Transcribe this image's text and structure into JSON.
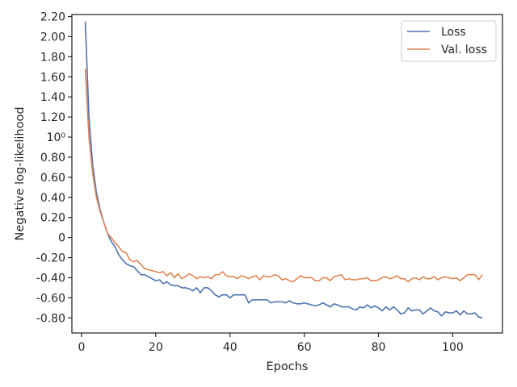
{
  "chart_data": {
    "type": "line",
    "title": "",
    "xlabel": "Epochs",
    "ylabel": "Negative log-likelihood",
    "xlim": [
      -2.6,
      113.4
    ],
    "ylim": [
      -0.95,
      2.22
    ],
    "x_ticks": [
      0,
      20,
      40,
      60,
      80,
      100
    ],
    "y_ticks": [
      {
        "value": 2.2,
        "label": "2.20"
      },
      {
        "value": 2.0,
        "label": "2.00"
      },
      {
        "value": 1.8,
        "label": "1.80"
      },
      {
        "value": 1.6,
        "label": "1.60"
      },
      {
        "value": 1.4,
        "label": "1.40"
      },
      {
        "value": 1.2,
        "label": "1.20"
      },
      {
        "value": 1.0,
        "label": "10⁰"
      },
      {
        "value": 0.8,
        "label": "0.80"
      },
      {
        "value": 0.6,
        "label": "0.60"
      },
      {
        "value": 0.4,
        "label": "0.40"
      },
      {
        "value": 0.2,
        "label": "0.20"
      },
      {
        "value": 0.0,
        "label": "0"
      },
      {
        "value": -0.2,
        "label": "-0.20"
      },
      {
        "value": -0.4,
        "label": "-0.40"
      },
      {
        "value": -0.6,
        "label": "-0.60"
      },
      {
        "value": -0.8,
        "label": "-0.80"
      }
    ],
    "grid": false,
    "legend_position": "top-right",
    "series": [
      {
        "name": "Loss",
        "color": "#4c72b0",
        "x": [
          1,
          2,
          3,
          4,
          5,
          6,
          7,
          8,
          9,
          10,
          11,
          12,
          13,
          14,
          15,
          16,
          17,
          18,
          19,
          20,
          21,
          22,
          23,
          24,
          25,
          26,
          27,
          28,
          29,
          30,
          31,
          32,
          33,
          34,
          35,
          36,
          37,
          38,
          39,
          40,
          41,
          42,
          43,
          44,
          45,
          46,
          47,
          48,
          49,
          50,
          51,
          52,
          53,
          54,
          55,
          56,
          57,
          58,
          59,
          60,
          61,
          62,
          63,
          64,
          65,
          66,
          67,
          68,
          69,
          70,
          71,
          72,
          73,
          74,
          75,
          76,
          77,
          78,
          79,
          80,
          81,
          82,
          83,
          84,
          85,
          86,
          87,
          88,
          89,
          90,
          91,
          92,
          93,
          94,
          95,
          96,
          97,
          98,
          99,
          100,
          101,
          102,
          103,
          104,
          105,
          106,
          107,
          108
        ],
        "y": [
          2.15,
          1.2,
          0.72,
          0.45,
          0.28,
          0.15,
          0.04,
          -0.04,
          -0.09,
          -0.17,
          -0.22,
          -0.26,
          -0.28,
          -0.29,
          -0.33,
          -0.37,
          -0.37,
          -0.39,
          -0.41,
          -0.43,
          -0.42,
          -0.46,
          -0.44,
          -0.47,
          -0.48,
          -0.48,
          -0.5,
          -0.5,
          -0.51,
          -0.53,
          -0.5,
          -0.55,
          -0.5,
          -0.5,
          -0.53,
          -0.57,
          -0.59,
          -0.57,
          -0.57,
          -0.6,
          -0.57,
          -0.57,
          -0.57,
          -0.57,
          -0.65,
          -0.62,
          -0.62,
          -0.62,
          -0.62,
          -0.62,
          -0.65,
          -0.64,
          -0.64,
          -0.64,
          -0.65,
          -0.63,
          -0.65,
          -0.66,
          -0.66,
          -0.65,
          -0.66,
          -0.67,
          -0.68,
          -0.67,
          -0.65,
          -0.67,
          -0.69,
          -0.66,
          -0.67,
          -0.69,
          -0.69,
          -0.69,
          -0.71,
          -0.72,
          -0.69,
          -0.7,
          -0.67,
          -0.7,
          -0.68,
          -0.7,
          -0.73,
          -0.69,
          -0.72,
          -0.69,
          -0.72,
          -0.76,
          -0.75,
          -0.7,
          -0.73,
          -0.72,
          -0.72,
          -0.76,
          -0.73,
          -0.7,
          -0.73,
          -0.74,
          -0.78,
          -0.74,
          -0.75,
          -0.75,
          -0.73,
          -0.77,
          -0.73,
          -0.76,
          -0.76,
          -0.75,
          -0.79,
          -0.8
        ]
      },
      {
        "name": "Val. loss",
        "color": "#dd8452",
        "x": [
          1,
          2,
          3,
          4,
          5,
          6,
          7,
          8,
          9,
          10,
          11,
          12,
          13,
          14,
          15,
          16,
          17,
          18,
          19,
          20,
          21,
          22,
          23,
          24,
          25,
          26,
          27,
          28,
          29,
          30,
          31,
          32,
          33,
          34,
          35,
          36,
          37,
          38,
          39,
          40,
          41,
          42,
          43,
          44,
          45,
          46,
          47,
          48,
          49,
          50,
          51,
          52,
          53,
          54,
          55,
          56,
          57,
          58,
          59,
          60,
          61,
          62,
          63,
          64,
          65,
          66,
          67,
          68,
          69,
          70,
          71,
          72,
          73,
          74,
          75,
          76,
          77,
          78,
          79,
          80,
          81,
          82,
          83,
          84,
          85,
          86,
          87,
          88,
          89,
          90,
          91,
          92,
          93,
          94,
          95,
          96,
          97,
          98,
          99,
          100,
          101,
          102,
          103,
          104,
          105,
          106,
          107,
          108
        ],
        "y": [
          1.68,
          1.0,
          0.64,
          0.4,
          0.26,
          0.15,
          0.04,
          0.0,
          -0.05,
          -0.09,
          -0.14,
          -0.15,
          -0.22,
          -0.24,
          -0.23,
          -0.27,
          -0.31,
          -0.32,
          -0.33,
          -0.34,
          -0.35,
          -0.34,
          -0.38,
          -0.35,
          -0.4,
          -0.36,
          -0.41,
          -0.39,
          -0.36,
          -0.38,
          -0.41,
          -0.39,
          -0.4,
          -0.39,
          -0.41,
          -0.37,
          -0.37,
          -0.34,
          -0.38,
          -0.39,
          -0.39,
          -0.41,
          -0.38,
          -0.39,
          -0.41,
          -0.39,
          -0.38,
          -0.42,
          -0.38,
          -0.39,
          -0.39,
          -0.37,
          -0.38,
          -0.42,
          -0.41,
          -0.43,
          -0.44,
          -0.41,
          -0.38,
          -0.4,
          -0.4,
          -0.4,
          -0.43,
          -0.43,
          -0.4,
          -0.4,
          -0.43,
          -0.39,
          -0.38,
          -0.37,
          -0.42,
          -0.41,
          -0.42,
          -0.42,
          -0.41,
          -0.41,
          -0.4,
          -0.43,
          -0.43,
          -0.42,
          -0.4,
          -0.39,
          -0.41,
          -0.4,
          -0.38,
          -0.41,
          -0.41,
          -0.44,
          -0.41,
          -0.4,
          -0.42,
          -0.39,
          -0.41,
          -0.41,
          -0.39,
          -0.42,
          -0.4,
          -0.39,
          -0.4,
          -0.41,
          -0.4,
          -0.43,
          -0.4,
          -0.37,
          -0.37,
          -0.37,
          -0.42,
          -0.37
        ]
      }
    ]
  }
}
